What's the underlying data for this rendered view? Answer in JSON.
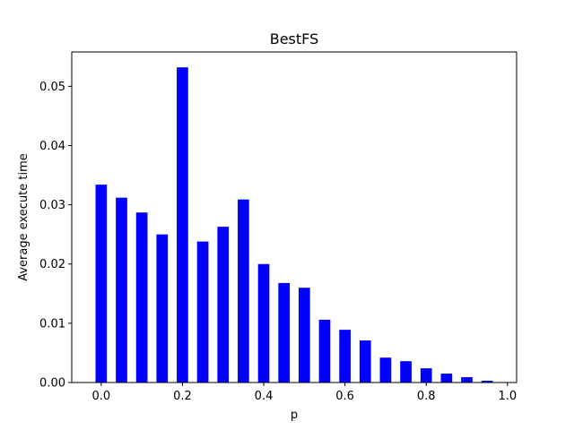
{
  "chart_data": {
    "type": "bar",
    "title": "BestFS",
    "xlabel": "p",
    "ylabel": "Average execute time",
    "bar_color": "#0000ff",
    "bar_width": 0.028,
    "xlim": [
      -0.0725,
      1.0225
    ],
    "ylim": [
      0,
      0.0558
    ],
    "xticks": [
      0.0,
      0.2,
      0.4,
      0.6,
      0.8,
      1.0
    ],
    "xtick_labels": [
      "0.0",
      "0.2",
      "0.4",
      "0.6",
      "0.8",
      "1.0"
    ],
    "yticks": [
      0.0,
      0.01,
      0.02,
      0.03,
      0.04,
      0.05
    ],
    "ytick_labels": [
      "0.00",
      "0.01",
      "0.02",
      "0.03",
      "0.04",
      "0.05"
    ],
    "grid": false,
    "x": [
      0.0,
      0.05,
      0.1,
      0.15,
      0.2,
      0.25,
      0.3,
      0.35,
      0.4,
      0.45,
      0.5,
      0.55,
      0.6,
      0.65,
      0.7,
      0.75,
      0.8,
      0.85,
      0.9,
      0.95
    ],
    "values": [
      0.0334,
      0.0312,
      0.0287,
      0.025,
      0.0532,
      0.0238,
      0.0263,
      0.0309,
      0.02,
      0.0168,
      0.016,
      0.0106,
      0.0089,
      0.0071,
      0.0042,
      0.0036,
      0.0024,
      0.0015,
      0.0009,
      0.0003
    ]
  }
}
